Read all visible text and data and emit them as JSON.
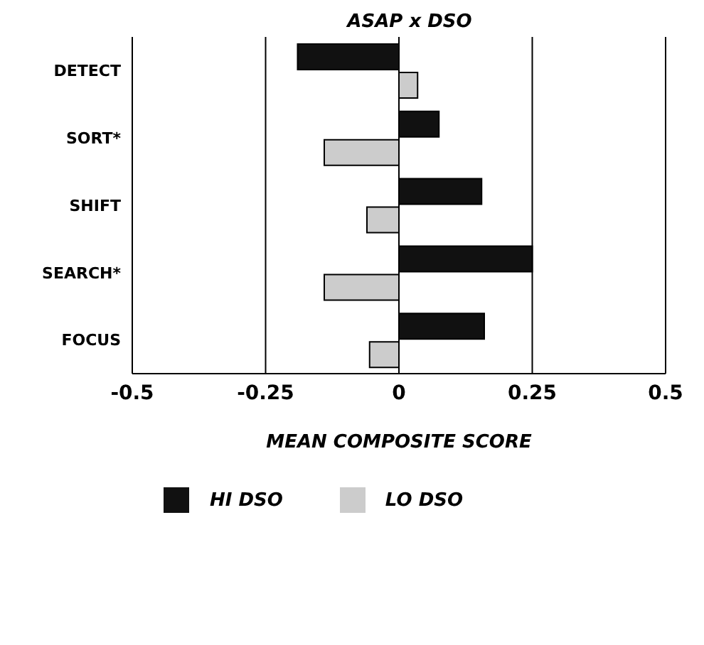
{
  "chart_data": {
    "type": "bar",
    "orientation": "horizontal",
    "title": "ASAP x DSO",
    "xlabel": "MEAN COMPOSITE SCORE",
    "categories": [
      "DETECT",
      "SORT*",
      "SHIFT",
      "SEARCH*",
      "FOCUS"
    ],
    "series": [
      {
        "name": "HI DSO",
        "color": "#111111",
        "values": [
          -0.19,
          0.075,
          0.155,
          0.25,
          0.16
        ]
      },
      {
        "name": "LO DSO",
        "color": "#cccccc",
        "values": [
          0.035,
          -0.14,
          -0.06,
          -0.14,
          -0.055
        ]
      }
    ],
    "xlim": [
      -0.5,
      0.5
    ],
    "xticks": [
      -0.5,
      -0.25,
      0,
      0.25,
      0.5
    ],
    "grid": "x",
    "legend": "bottom"
  }
}
